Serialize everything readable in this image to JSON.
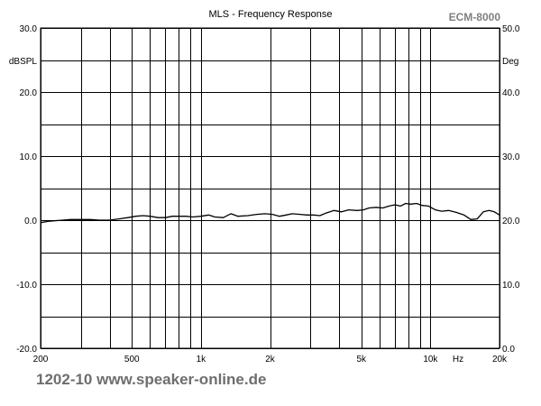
{
  "chart_data": {
    "type": "line",
    "title": "MLS - Frequency Response",
    "brand": "ECM-8000",
    "footer": "1202-10 www.speaker-online.de",
    "x_scale": "log",
    "xlim": [
      200,
      20000
    ],
    "x_ticks": [
      {
        "value": 200,
        "label": "200"
      },
      {
        "value": 500,
        "label": "500"
      },
      {
        "value": 1000,
        "label": "1k"
      },
      {
        "value": 2000,
        "label": "2k"
      },
      {
        "value": 5000,
        "label": "5k"
      },
      {
        "value": 10000,
        "label": "10k"
      },
      {
        "value": 20000,
        "label": "20k"
      }
    ],
    "x_unit": "Hz",
    "x_gridlines": [
      200,
      300,
      400,
      500,
      600,
      700,
      800,
      900,
      1000,
      2000,
      3000,
      4000,
      5000,
      6000,
      7000,
      8000,
      9000,
      10000,
      20000
    ],
    "ylabel_left": "dBSPL",
    "ylabel_right": "Deg",
    "ylim_left": [
      -20,
      30
    ],
    "ylim_right": [
      0,
      50
    ],
    "y_ticks_left": [
      {
        "value": 30,
        "label": "30.0"
      },
      {
        "value": 20,
        "label": "20.0"
      },
      {
        "value": 10,
        "label": "10.0"
      },
      {
        "value": 0,
        "label": "0.0"
      },
      {
        "value": -10,
        "label": "-10.0"
      },
      {
        "value": -20,
        "label": "-20.0"
      }
    ],
    "y_ticks_right": [
      {
        "value": 50,
        "label": "50.0"
      },
      {
        "value": 40,
        "label": "40.0"
      },
      {
        "value": 30,
        "label": "30.0"
      },
      {
        "value": 20,
        "label": "20.0"
      },
      {
        "value": 10,
        "label": "10.0"
      },
      {
        "value": 0,
        "label": "0.0"
      }
    ],
    "y_gridlines": [
      -20,
      -15,
      -10,
      -5,
      0,
      5,
      10,
      15,
      20,
      25,
      30
    ],
    "grid": true,
    "series": [
      {
        "x": [
          200,
          215,
          230,
          250,
          270,
          300,
          330,
          360,
          400,
          440,
          480,
          520,
          560,
          600,
          650,
          700,
          750,
          800,
          860,
          920,
          1000,
          1080,
          1150,
          1250,
          1350,
          1450,
          1600,
          1750,
          1900,
          2050,
          2200,
          2350,
          2500,
          2700,
          2900,
          3100,
          3300,
          3500,
          3800,
          4100,
          4400,
          4800,
          5100,
          5400,
          5800,
          6200,
          6600,
          7000,
          7400,
          7800,
          8200,
          8700,
          9200,
          9800,
          10500,
          11200,
          12000,
          13000,
          14000,
          15000,
          16000,
          17000,
          18000,
          19000,
          20000
        ],
        "y": [
          -0.4,
          -0.2,
          -0.1,
          0.0,
          0.1,
          0.1,
          0.1,
          0.0,
          0.0,
          0.2,
          0.4,
          0.6,
          0.7,
          0.6,
          0.4,
          0.4,
          0.6,
          0.6,
          0.6,
          0.5,
          0.6,
          0.8,
          0.5,
          0.4,
          1.0,
          0.6,
          0.7,
          0.9,
          1.0,
          0.9,
          0.6,
          0.8,
          1.0,
          0.9,
          0.8,
          0.8,
          0.7,
          1.1,
          1.5,
          1.3,
          1.6,
          1.5,
          1.6,
          1.9,
          2.0,
          1.9,
          2.2,
          2.4,
          2.2,
          2.6,
          2.5,
          2.6,
          2.3,
          2.2,
          1.6,
          1.4,
          1.5,
          1.2,
          0.8,
          0.1,
          0.2,
          1.3,
          1.5,
          1.3,
          0.8
        ]
      }
    ]
  }
}
